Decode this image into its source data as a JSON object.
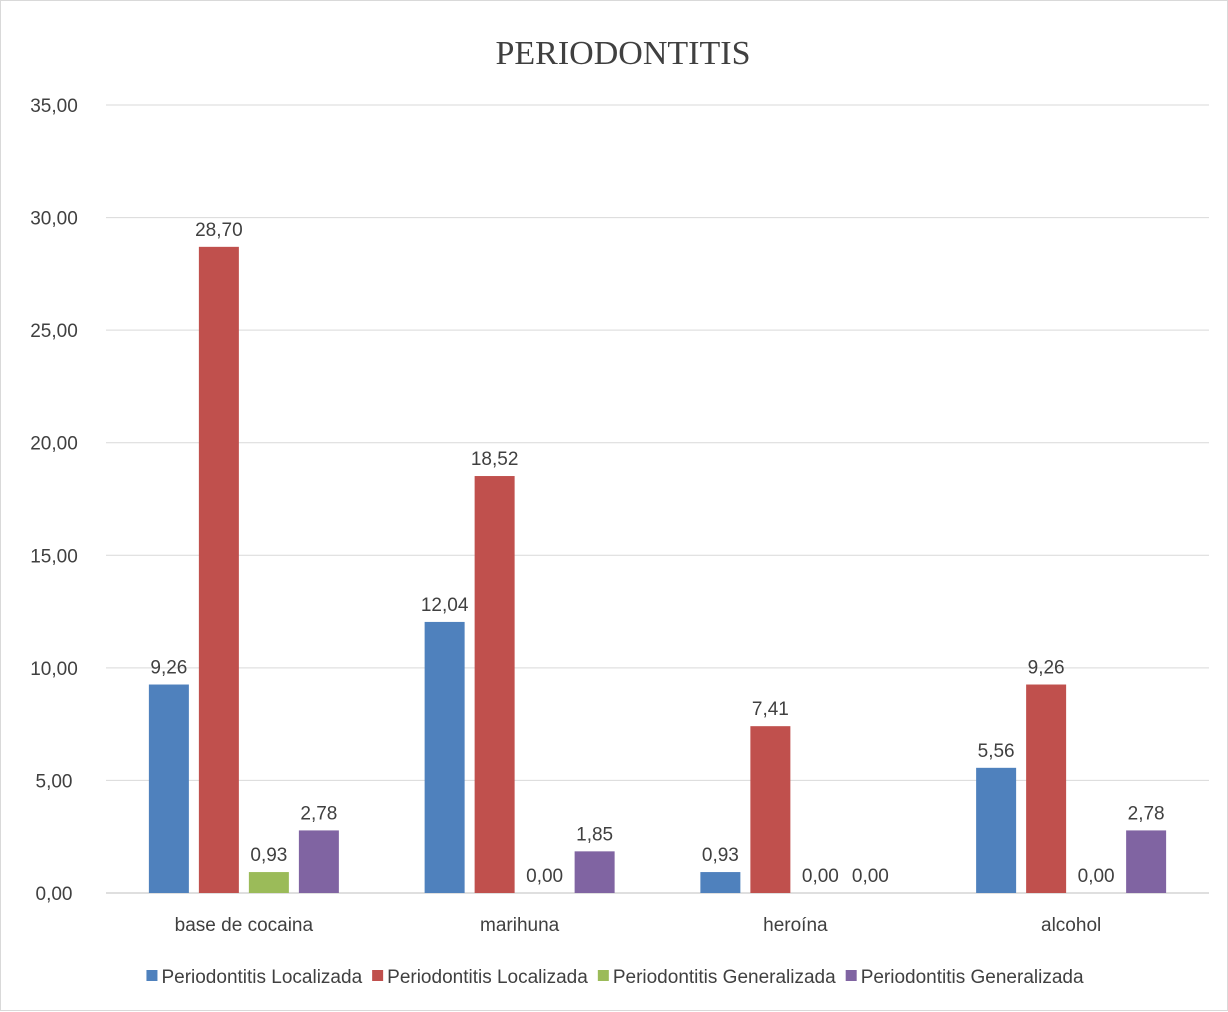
{
  "chart_data": {
    "type": "bar",
    "title": "PERIODONTITIS",
    "xlabel": "",
    "ylabel": "",
    "ylim": [
      0,
      35
    ],
    "y_ticks": [
      "0,00",
      "5,00",
      "10,00",
      "15,00",
      "20,00",
      "25,00",
      "30,00",
      "35,00"
    ],
    "grid": true,
    "legend_position": "bottom",
    "categories": [
      "base de cocaina",
      "marihuna",
      "heroína",
      "alcohol"
    ],
    "series": [
      {
        "name": "Periodontitis Localizada",
        "color": "#4f81bd",
        "values": [
          9.26,
          12.04,
          0.93,
          5.56
        ],
        "labels": [
          "9,26",
          "12,04",
          "0,93",
          "5,56"
        ]
      },
      {
        "name": "Periodontitis Localizada",
        "color": "#c0504d",
        "values": [
          28.7,
          18.52,
          7.41,
          9.26
        ],
        "labels": [
          "28,70",
          "18,52",
          "7,41",
          "9,26"
        ]
      },
      {
        "name": "Periodontitis Generalizada",
        "color": "#9bbb59",
        "values": [
          0.93,
          0.0,
          0.0,
          0.0
        ],
        "labels": [
          "0,93",
          "0,00",
          "0,00",
          "0,00"
        ]
      },
      {
        "name": "Periodontitis Generalizada",
        "color": "#8064a2",
        "values": [
          2.78,
          1.85,
          0.0,
          2.78
        ],
        "labels": [
          "2,78",
          "1,85",
          "0,00",
          "2,78"
        ]
      }
    ]
  }
}
